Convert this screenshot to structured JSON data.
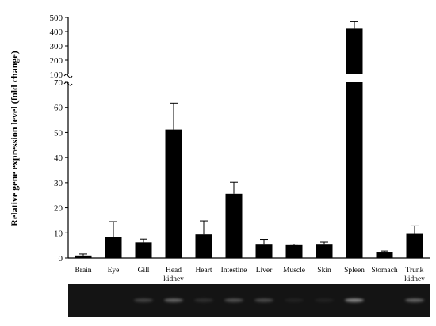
{
  "chart_data": {
    "type": "bar",
    "categories": [
      "Brain",
      "Eye",
      "Gill",
      "Head\nkidney",
      "Heart",
      "Intestine",
      "Liver",
      "Muscle",
      "Skin",
      "Spleen",
      "Stomach",
      "Trunk\nkidney"
    ],
    "values": [
      1,
      8.2,
      6.2,
      51.2,
      9.4,
      25.6,
      5.3,
      5.1,
      5.3,
      420,
      2.2,
      9.6
    ],
    "errors": [
      0.6,
      6.3,
      1.3,
      10.5,
      5.4,
      4.6,
      2.1,
      0.4,
      1.0,
      50,
      0.6,
      3.2
    ],
    "title": "",
    "xlabel": "",
    "ylabel": "Relative gene expression level (fold change)",
    "y_axis_break": {
      "lower_range": [
        0,
        70
      ],
      "upper_range": [
        100,
        500
      ]
    },
    "yticks_lower": [
      0,
      10,
      20,
      30,
      40,
      50,
      60,
      70
    ],
    "yticks_upper": [
      100,
      200,
      300,
      400,
      500
    ],
    "bar_color": "#000000",
    "grid": false,
    "legend": "none"
  },
  "gel_image": {
    "background": "#141414",
    "band_color": "#9a9a9a",
    "band_intensity": [
      0.0,
      0.0,
      0.35,
      0.6,
      0.2,
      0.45,
      0.4,
      0.1,
      0.1,
      0.85,
      0.0,
      0.6
    ]
  }
}
